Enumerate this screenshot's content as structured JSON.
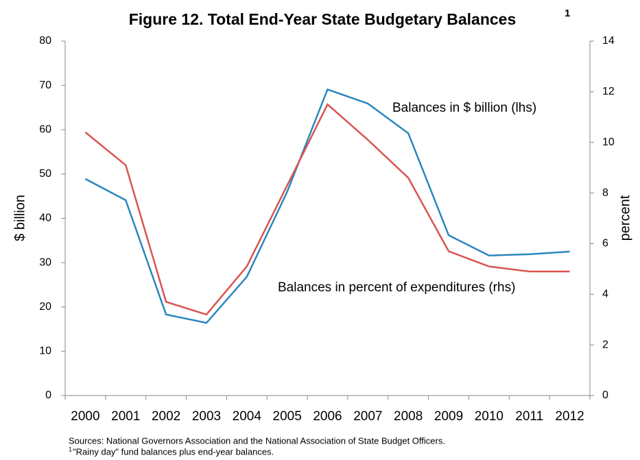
{
  "chart_data": {
    "type": "line",
    "title": "Figure 12. Total End-Year State Budgetary Balances",
    "title_marker": "1",
    "categories": [
      "2000",
      "2001",
      "2002",
      "2003",
      "2004",
      "2005",
      "2006",
      "2007",
      "2008",
      "2009",
      "2010",
      "2011",
      "2012"
    ],
    "series": [
      {
        "name": "Balances in $ billion (lhs)",
        "color": "#2a86bd",
        "axis": "y",
        "values": [
          48.9,
          44.1,
          18.3,
          16.4,
          26.8,
          46.0,
          69.1,
          65.9,
          59.2,
          36.2,
          31.6,
          31.9,
          32.5
        ]
      },
      {
        "name": "Balances in percent of expenditures (rhs)",
        "color": "#d9534f",
        "axis": "y2",
        "values": [
          10.4,
          9.1,
          3.7,
          3.2,
          5.1,
          8.3,
          11.5,
          10.1,
          8.6,
          5.7,
          5.1,
          4.9,
          4.9
        ]
      }
    ],
    "ylabel": "$ billion",
    "y2label": "percent",
    "ylim": [
      0,
      80
    ],
    "yticks": [
      0,
      10,
      20,
      30,
      40,
      50,
      60,
      70,
      80
    ],
    "y2lim": [
      0,
      14
    ],
    "y2ticks": [
      0,
      2,
      4,
      6,
      8,
      10,
      12,
      14
    ],
    "grid": false,
    "source": "Sources: National Governors Association and the National Association of State Budget Officers.",
    "footnote_marker": "1",
    "footnote": "\"Rainy day\" fund balances plus end-year balances."
  }
}
